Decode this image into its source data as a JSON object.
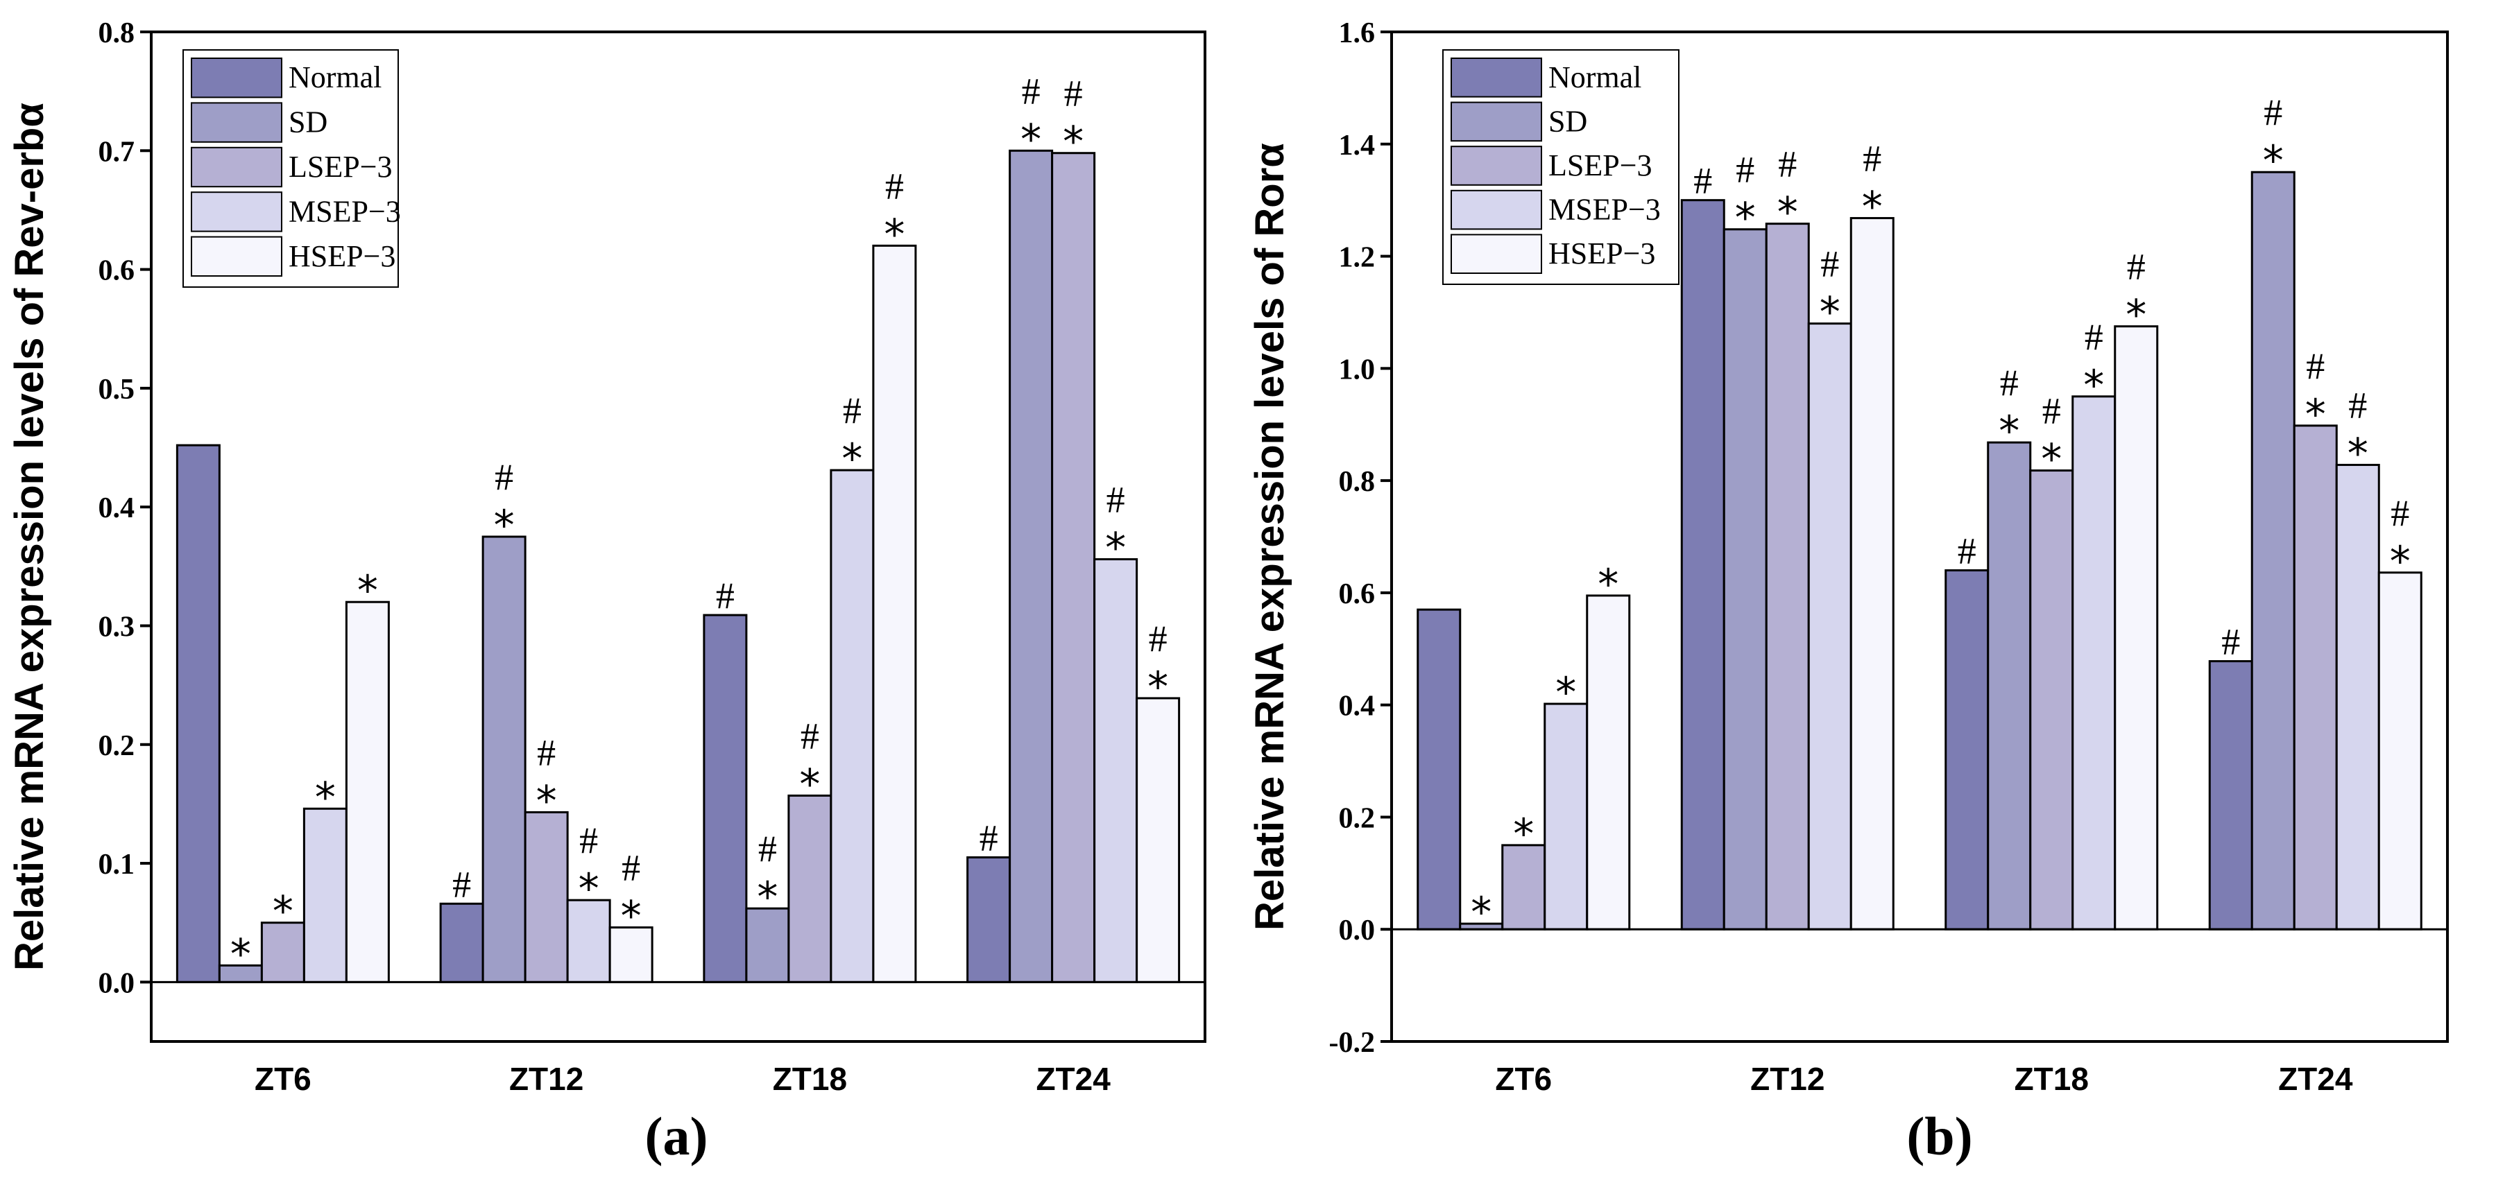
{
  "colors": [
    "#7d7db3",
    "#9e9ec7",
    "#b5b0d3",
    "#d6d6ee",
    "#f6f6fd"
  ],
  "chart_data": [
    {
      "type": "bar",
      "panel_label": "(a)",
      "ylabel": "Relative mRNA expression levels of Rev-erbα",
      "categories": [
        "ZT6",
        "ZT12",
        "ZT18",
        "ZT24"
      ],
      "ylim": [
        -0.05,
        0.8
      ],
      "yticks": [
        0.0,
        0.1,
        0.2,
        0.3,
        0.4,
        0.5,
        0.6,
        0.7,
        0.8
      ],
      "yticklabels": [
        "0.0",
        "0.1",
        "0.2",
        "0.3",
        "0.4",
        "0.5",
        "0.6",
        "0.7",
        "0.8"
      ],
      "legend_position": "top-left",
      "grid": false,
      "series": [
        {
          "name": "Normal",
          "values": [
            0.452,
            0.066,
            0.309,
            0.105
          ],
          "annotations": [
            "",
            "#",
            "#",
            "#"
          ]
        },
        {
          "name": "SD",
          "values": [
            0.014,
            0.375,
            0.062,
            0.7
          ],
          "annotations": [
            "*",
            "*#",
            "*#",
            "*#"
          ]
        },
        {
          "name": "LSEP−3",
          "values": [
            0.05,
            0.143,
            0.157,
            0.698
          ],
          "annotations": [
            "*",
            "*#",
            "*#",
            "*#"
          ]
        },
        {
          "name": "MSEP−3",
          "values": [
            0.146,
            0.069,
            0.431,
            0.356
          ],
          "annotations": [
            "*",
            "*#",
            "*#",
            "*#"
          ]
        },
        {
          "name": "HSEP−3",
          "values": [
            0.32,
            0.046,
            0.62,
            0.239
          ],
          "annotations": [
            "*",
            "*#",
            "*#",
            "*#"
          ]
        }
      ]
    },
    {
      "type": "bar",
      "panel_label": "(b)",
      "ylabel": "Relative mRNA expression levels of Rorα",
      "categories": [
        "ZT6",
        "ZT12",
        "ZT18",
        "ZT24"
      ],
      "ylim": [
        -0.2,
        1.6
      ],
      "yticks": [
        -0.2,
        0.0,
        0.2,
        0.4,
        0.6,
        0.8,
        1.0,
        1.2,
        1.4,
        1.6
      ],
      "yticklabels": [
        "-0.2",
        "0.0",
        "0.2",
        "0.4",
        "0.6",
        "0.8",
        "1.0",
        "1.2",
        "1.4",
        "1.6"
      ],
      "legend_position": "top-left",
      "grid": false,
      "series": [
        {
          "name": "Normal",
          "values": [
            0.57,
            1.3,
            0.64,
            0.478
          ],
          "annotations": [
            "",
            "#",
            "#",
            "#"
          ]
        },
        {
          "name": "SD",
          "values": [
            0.01,
            1.248,
            0.868,
            1.35
          ],
          "annotations": [
            "*",
            "*#",
            "*#",
            "*#"
          ]
        },
        {
          "name": "LSEP−3",
          "values": [
            0.15,
            1.258,
            0.818,
            0.898
          ],
          "annotations": [
            "*",
            "*#",
            "*#",
            "*#"
          ]
        },
        {
          "name": "MSEP−3",
          "values": [
            0.402,
            1.08,
            0.95,
            0.828
          ],
          "annotations": [
            "*",
            "*#",
            "*#",
            "*#"
          ]
        },
        {
          "name": "HSEP−3",
          "values": [
            0.595,
            1.268,
            1.075,
            0.636
          ],
          "annotations": [
            "*",
            "*#",
            "*#",
            "*#"
          ]
        }
      ]
    }
  ]
}
